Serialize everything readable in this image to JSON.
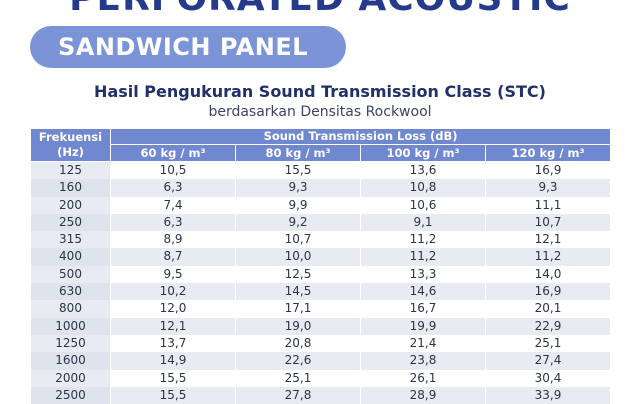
{
  "header": {
    "title": "PERFORATED ACOUSTIC",
    "badge": "SANDWICH PANEL"
  },
  "table_title": "Hasil Pengukuran Sound Transmission Class (STC)",
  "table_subtitle": "berdasarkan Densitas Rockwool",
  "table": {
    "col_header_first": "Frekuensi (Hz)",
    "group_header": "Sound Transmission Loss (dB)",
    "density_headers": [
      "60 kg / m³",
      "80 kg / m³",
      "100 kg / m³",
      "120 kg / m³"
    ],
    "rows": [
      [
        "125",
        "10,5",
        "15,5",
        "13,6",
        "16,9"
      ],
      [
        "160",
        "6,3",
        "9,3",
        "10,8",
        "9,3"
      ],
      [
        "200",
        "7,4",
        "9,9",
        "10,6",
        "11,1"
      ],
      [
        "250",
        "6,3",
        "9,2",
        "9,1",
        "10,7"
      ],
      [
        "315",
        "8,9",
        "10,7",
        "11,2",
        "12,1"
      ],
      [
        "400",
        "8,7",
        "10,0",
        "11,2",
        "11,2"
      ],
      [
        "500",
        "9,5",
        "12,5",
        "13,3",
        "14,0"
      ],
      [
        "630",
        "10,2",
        "14,5",
        "14,6",
        "16,9"
      ],
      [
        "800",
        "12,0",
        "17,1",
        "16,7",
        "20,1"
      ],
      [
        "1000",
        "12,1",
        "19,0",
        "19,9",
        "22,9"
      ],
      [
        "1250",
        "13,7",
        "20,8",
        "21,4",
        "25,1"
      ],
      [
        "1600",
        "14,9",
        "22,6",
        "23,8",
        "27,4"
      ],
      [
        "2000",
        "15,5",
        "25,1",
        "26,1",
        "30,4"
      ],
      [
        "2500",
        "15,5",
        "27,8",
        "28,9",
        "33,9"
      ]
    ]
  }
}
